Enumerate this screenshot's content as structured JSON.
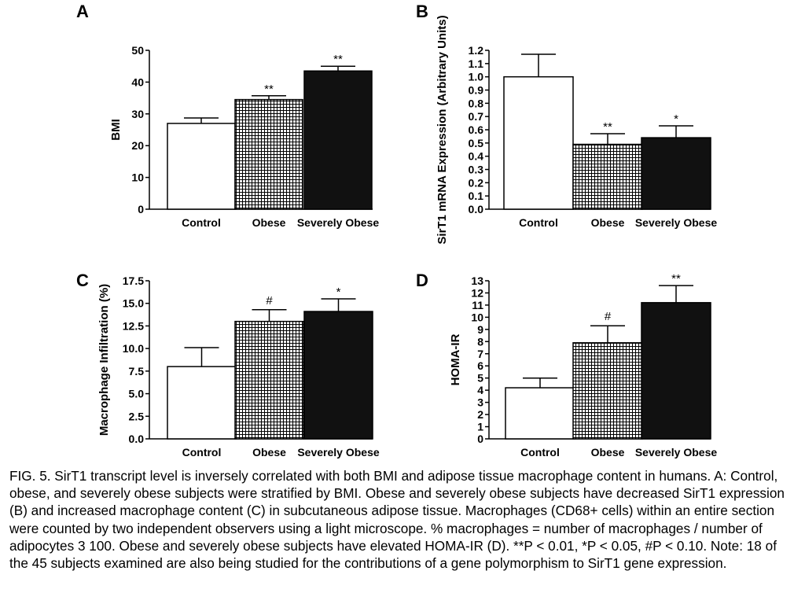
{
  "figure_caption": "FIG. 5. SirT1 transcript level is inversely correlated with both BMI and adipose tissue macrophage content in humans. A: Control, obese, and severely obese subjects were stratified by BMI. Obese and severely obese subjects have decreased SirT1 expression (B) and increased macrophage content (C) in subcutaneous adipose tissue. Macrophages (CD68+ cells) within an entire section were counted by two independent observers using a light microscope. % macrophages = number of macrophages / number of adipocytes 3 100. Obese and severely obese subjects have elevated HOMA-IR (D). **P < 0.01, *P < 0.05, #P < 0.10. Note: 18 of the 45 subjects examined are also being studied for the contributions of a gene polymorphism to SirT1 gene expression.",
  "colors": {
    "control": "#ffffff",
    "obese_hatch": "#000000",
    "severely_obese": "#111111",
    "axis": "#000000"
  },
  "chart_data": [
    {
      "panel": "A",
      "type": "bar",
      "ylabel": "BMI",
      "categories": [
        "Control",
        "Obese",
        "Severely Obese"
      ],
      "fills": [
        "open",
        "hatched",
        "solid"
      ],
      "values": [
        27,
        34.5,
        43.5
      ],
      "errors": [
        1.7,
        1.2,
        1.5
      ],
      "significance": [
        "",
        "**",
        "**"
      ],
      "ylim": [
        0,
        50
      ],
      "yticks": [
        0,
        10,
        20,
        30,
        40,
        50
      ],
      "ytick_labels": [
        "0",
        "10",
        "20",
        "30",
        "40",
        "50"
      ],
      "grid": false
    },
    {
      "panel": "B",
      "type": "bar",
      "ylabel": "SirT1 mRNA Expression (Arbitrary Units)",
      "categories": [
        "Control",
        "Obese",
        "Severely Obese"
      ],
      "fills": [
        "open",
        "hatched",
        "solid"
      ],
      "values": [
        1.0,
        0.49,
        0.54
      ],
      "errors": [
        0.17,
        0.08,
        0.09
      ],
      "significance": [
        "",
        "**",
        "*"
      ],
      "ylim": [
        0,
        1.2
      ],
      "yticks": [
        0.0,
        0.1,
        0.2,
        0.3,
        0.4,
        0.5,
        0.6,
        0.7,
        0.8,
        0.9,
        1.0,
        1.1,
        1.2
      ],
      "ytick_labels": [
        "0.0",
        "0.1",
        "0.2",
        "0.3",
        "0.4",
        "0.5",
        "0.6",
        "0.7",
        "0.8",
        "0.9",
        "1.0",
        "1.1",
        "1.2"
      ],
      "grid": false
    },
    {
      "panel": "C",
      "type": "bar",
      "ylabel": "Macrophage Infiltration (%)",
      "categories": [
        "Control",
        "Obese",
        "Severely Obese"
      ],
      "fills": [
        "open",
        "hatched",
        "solid"
      ],
      "values": [
        8.0,
        13.0,
        14.1
      ],
      "errors": [
        2.1,
        1.3,
        1.4
      ],
      "significance": [
        "",
        "#",
        "*"
      ],
      "ylim": [
        0,
        17.5
      ],
      "yticks": [
        0,
        2.5,
        5.0,
        7.5,
        10.0,
        12.5,
        15.0,
        17.5
      ],
      "ytick_labels": [
        "0.0",
        "2.5",
        "5.0",
        "7.5",
        "10.0",
        "12.5",
        "15.0",
        "17.5"
      ],
      "grid": false
    },
    {
      "panel": "D",
      "type": "bar",
      "ylabel": "HOMA-IR",
      "categories": [
        "Control",
        "Obese",
        "Severely Obese"
      ],
      "fills": [
        "open",
        "hatched",
        "solid"
      ],
      "values": [
        4.2,
        7.9,
        11.2
      ],
      "errors": [
        0.8,
        1.4,
        1.4
      ],
      "significance": [
        "",
        "#",
        "**"
      ],
      "ylim": [
        0,
        13
      ],
      "yticks": [
        0,
        1,
        2,
        3,
        4,
        5,
        6,
        7,
        8,
        9,
        10,
        11,
        12,
        13
      ],
      "ytick_labels": [
        "0",
        "1",
        "2",
        "3",
        "4",
        "5",
        "6",
        "7",
        "8",
        "9",
        "10",
        "11",
        "12",
        "13"
      ],
      "grid": false
    }
  ]
}
